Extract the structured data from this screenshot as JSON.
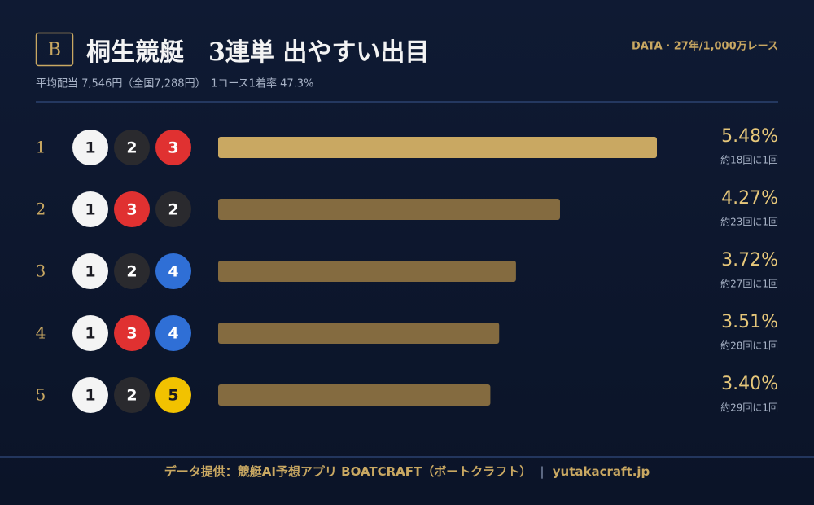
{
  "badge": "B",
  "header": {
    "title": "桐生競艇　3連単 出やすい出目",
    "subtitle": "平均配当 7,546円（全国7,288円）　1コース1着率 47.3%",
    "source": "DATA · 27年/1,000万レース"
  },
  "chart_data": {
    "type": "bar",
    "orientation": "horizontal",
    "categories": [
      "1",
      "2",
      "3",
      "4",
      "5"
    ],
    "combos": [
      [
        "1",
        "2",
        "3"
      ],
      [
        "1",
        "3",
        "2"
      ],
      [
        "1",
        "2",
        "4"
      ],
      [
        "1",
        "3",
        "4"
      ],
      [
        "1",
        "2",
        "5"
      ]
    ],
    "values": [
      5.48,
      4.27,
      3.72,
      3.51,
      3.4
    ],
    "value_labels": [
      "5.48%",
      "4.27%",
      "3.72%",
      "3.51%",
      "3.40%"
    ],
    "frequency_labels": [
      "約18回に1回",
      "約23回に1回",
      "約27回に1回",
      "約28回に1回",
      "約29回に1回"
    ],
    "bar_colors": [
      "#c9a862",
      "#846b40",
      "#846b40",
      "#846b40",
      "#846b40"
    ],
    "boat_colors": {
      "1": "#f4f4f4",
      "2": "#2a2a2e",
      "3": "#e03131",
      "4": "#2f6fd6",
      "5": "#f2c200"
    }
  },
  "footer": {
    "credit": "データ提供：競艇AI予想アプリ BOATCRAFT（ボートクラフト）",
    "site": "yutakacraft.jp"
  }
}
